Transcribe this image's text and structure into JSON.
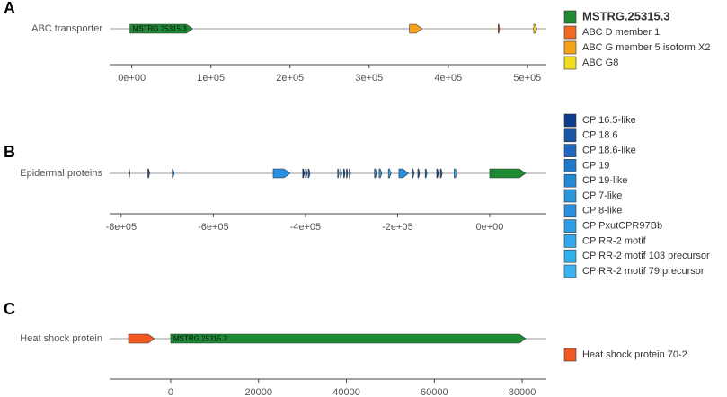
{
  "chart_data": [
    {
      "type": "gene",
      "panel": "A",
      "track": "ABC transporter",
      "xlim": [
        -28000,
        524000
      ],
      "xticks": [
        {
          "value": 0,
          "label": "0e+00"
        },
        {
          "value": 100000,
          "label": "1e+05"
        },
        {
          "value": 200000,
          "label": "2e+05"
        },
        {
          "value": 300000,
          "label": "3e+05"
        },
        {
          "value": 400000,
          "label": "4e+05"
        },
        {
          "value": 500000,
          "label": "5e+05"
        }
      ],
      "genes": [
        {
          "label": "MSTRG.25315.3",
          "start": -2300,
          "end": 77000,
          "color": "#1e8a34"
        },
        {
          "start": 351000,
          "end": 367000,
          "color": "#f5a21b"
        },
        {
          "start": 463000,
          "end": 465000,
          "color": "#f06a22"
        },
        {
          "start": 508000,
          "end": 512000,
          "color": "#f2dc1e"
        }
      ],
      "legend": [
        {
          "name": "MSTRG.25315.3",
          "color": "#1e8a34"
        },
        {
          "name": "ABC D member 1",
          "color": "#f06a22"
        },
        {
          "name": "ABC G member 5 isoform X2",
          "color": "#f5a21b"
        },
        {
          "name": "ABC G8",
          "color": "#f2dc1e"
        }
      ]
    },
    {
      "type": "gene",
      "panel": "B",
      "track": "Epidermal proteins",
      "xlim": [
        -825000,
        123000
      ],
      "xticks": [
        {
          "value": -800000,
          "label": "-8e+05"
        },
        {
          "value": -600000,
          "label": "-6e+05"
        },
        {
          "value": -400000,
          "label": "-4e+05"
        },
        {
          "value": -200000,
          "label": "-2e+05"
        },
        {
          "value": 0,
          "label": "0e+00"
        }
      ],
      "genes": [
        {
          "start": -783000,
          "end": -781000,
          "color": "#0d3d8c"
        },
        {
          "start": -742000,
          "end": -738000,
          "color": "#1a55a8"
        },
        {
          "start": -689000,
          "end": -685000,
          "color": "#1d67c0"
        },
        {
          "start": -470000,
          "end": -433000,
          "color": "#2a8fe0"
        },
        {
          "start": -406000,
          "end": -402000,
          "color": "#0d3d8c"
        },
        {
          "start": -400000,
          "end": -396000,
          "color": "#1a55a8"
        },
        {
          "start": -394000,
          "end": -390000,
          "color": "#1d67c0"
        },
        {
          "start": -330000,
          "end": -327000,
          "color": "#1f78c8"
        },
        {
          "start": -324000,
          "end": -321000,
          "color": "#2489d4"
        },
        {
          "start": -317000,
          "end": -314000,
          "color": "#0d3d8c"
        },
        {
          "start": -311000,
          "end": -308000,
          "color": "#1a55a8"
        },
        {
          "start": -305000,
          "end": -302000,
          "color": "#1d67c0"
        },
        {
          "start": -250000,
          "end": -245000,
          "color": "#1f78c8"
        },
        {
          "start": -240000,
          "end": -234000,
          "color": "#2a97dc"
        },
        {
          "start": -220000,
          "end": -214000,
          "color": "#2f9fe5"
        },
        {
          "start": -197000,
          "end": -176000,
          "color": "#2a8fe0"
        },
        {
          "start": -168000,
          "end": -164000,
          "color": "#1d67c0"
        },
        {
          "start": -156000,
          "end": -152000,
          "color": "#1a55a8"
        },
        {
          "start": -140000,
          "end": -136000,
          "color": "#1f78c8"
        },
        {
          "start": -115000,
          "end": -111000,
          "color": "#0d3d8c"
        },
        {
          "start": -107000,
          "end": -103000,
          "color": "#1a55a8"
        },
        {
          "start": -77000,
          "end": -71000,
          "color": "#33a6ec"
        },
        {
          "start": 0,
          "end": 78000,
          "color": "#1e8a34"
        }
      ],
      "legend": [
        {
          "name": "CP 16.5-like",
          "color": "#0d3d8c"
        },
        {
          "name": "CP 18.6",
          "color": "#1a55a8"
        },
        {
          "name": "CP 18.6-like",
          "color": "#1d67c0"
        },
        {
          "name": "CP 19",
          "color": "#1f78c8"
        },
        {
          "name": "CP 19-like",
          "color": "#2489d4"
        },
        {
          "name": "CP 7-like",
          "color": "#2a97dc"
        },
        {
          "name": "CP 8-like",
          "color": "#2a8fe0"
        },
        {
          "name": "CP PxutCPR97Bb",
          "color": "#2f9fe5"
        },
        {
          "name": "CP RR-2 motif",
          "color": "#33a6ec"
        },
        {
          "name": "CP RR-2 motif 103 precursor",
          "color": "#2fb0ef"
        },
        {
          "name": "CP RR-2 motif 79 precursor",
          "color": "#3ab3f0"
        }
      ]
    },
    {
      "type": "gene",
      "panel": "C",
      "track": "Heat shock protein",
      "xlim": [
        -13900,
        85500
      ],
      "xticks": [
        0,
        20000,
        40000,
        60000,
        80000
      ],
      "genes": [
        {
          "start": -9600,
          "end": -3700,
          "color": "#f05a22"
        },
        {
          "label": "MSTRG.25315.3",
          "start": 0,
          "end": 80800,
          "color": "#1e8a34"
        }
      ],
      "legend": [
        {
          "name": "Heat shock protein 70-2",
          "color": "#f05a22"
        }
      ]
    }
  ]
}
